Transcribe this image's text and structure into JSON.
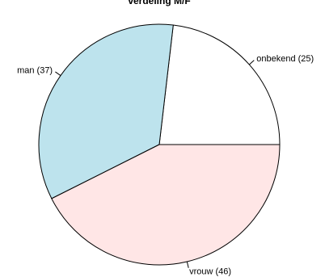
{
  "chart_data": {
    "type": "pie",
    "title": "verdeling M/F",
    "slices": [
      {
        "label": "onbekend (25)",
        "value": 25,
        "color": "#ffffff"
      },
      {
        "label": "man (37)",
        "value": 37,
        "color": "#bde3ed"
      },
      {
        "label": "vrouw (46)",
        "value": 46,
        "color": "#ffe6e6"
      }
    ],
    "start_angle_deg": 0,
    "direction": "counterclockwise",
    "border_color": "#000000"
  }
}
